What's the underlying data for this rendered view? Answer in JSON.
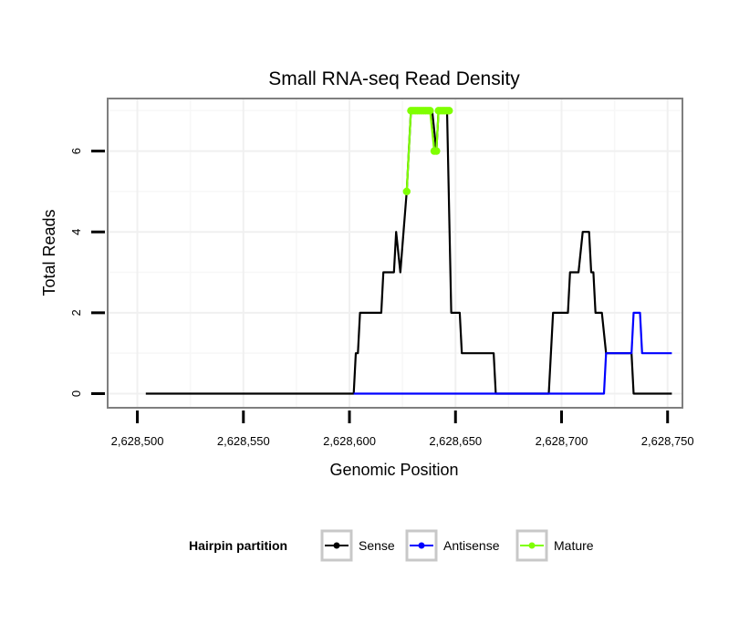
{
  "chart_data": {
    "type": "line",
    "title": "Small RNA-seq Read Density",
    "xlabel": "Genomic Position",
    "ylabel": "Total Reads",
    "xlim": [
      2628486,
      2628757
    ],
    "ylim": [
      -0.35,
      7.3
    ],
    "xticks": [
      {
        "value": 2628500,
        "label": "2,628,500"
      },
      {
        "value": 2628550,
        "label": "2,628,550"
      },
      {
        "value": 2628600,
        "label": "2,628,600"
      },
      {
        "value": 2628650,
        "label": "2,628,650"
      },
      {
        "value": 2628700,
        "label": "2,628,700"
      },
      {
        "value": 2628750,
        "label": "2,628,750"
      }
    ],
    "yticks": [
      {
        "value": 0,
        "label": "0"
      },
      {
        "value": 2,
        "label": "2"
      },
      {
        "value": 4,
        "label": "4"
      },
      {
        "value": 6,
        "label": "6"
      }
    ],
    "legend": {
      "title": "Hairpin partition",
      "position": "bottom",
      "entries": [
        {
          "name": "Sense",
          "color": "#000000"
        },
        {
          "name": "Antisense",
          "color": "#0000ff"
        },
        {
          "name": "Mature",
          "color": "#7fff00"
        }
      ]
    },
    "series": [
      {
        "name": "Sense",
        "color": "#000000",
        "x": [
          2628504,
          2628602,
          2628603,
          2628604,
          2628605,
          2628615,
          2628616,
          2628619,
          2628620,
          2628621,
          2628622,
          2628624,
          2628627,
          2628629,
          2628637,
          2628639,
          2628641,
          2628642,
          2628646,
          2628648,
          2628652,
          2628653,
          2628668,
          2628669,
          2628694,
          2628696,
          2628703,
          2628704,
          2628706,
          2628707,
          2628708,
          2628710,
          2628713,
          2628714,
          2628715,
          2628716,
          2628719,
          2628721,
          2628722,
          2628733,
          2628734,
          2628752
        ],
        "y": [
          0,
          0,
          1,
          1,
          2,
          2,
          3,
          3,
          3,
          3,
          4,
          3,
          5,
          7,
          7,
          7,
          6,
          7,
          7,
          2,
          2,
          1,
          1,
          0,
          0,
          2,
          2,
          3,
          3,
          3,
          3,
          4,
          4,
          3,
          3,
          2,
          2,
          1,
          1,
          1,
          0,
          0
        ]
      },
      {
        "name": "Antisense",
        "color": "#0000ff",
        "x": [
          2628602,
          2628720,
          2628721,
          2628733,
          2628734,
          2628737,
          2628738,
          2628752
        ],
        "y": [
          0,
          0,
          1,
          1,
          2,
          2,
          1,
          1
        ]
      },
      {
        "name": "Mature",
        "color": "#7fff00",
        "x": [
          2628627,
          2628629,
          2628630,
          2628631,
          2628632,
          2628633,
          2628634,
          2628635,
          2628636,
          2628637,
          2628638,
          2628640,
          2628641,
          2628642,
          2628643,
          2628644,
          2628645,
          2628646,
          2628647
        ],
        "y": [
          5,
          7,
          7,
          7,
          7,
          7,
          7,
          7,
          7,
          7,
          7,
          6,
          6,
          7,
          7,
          7,
          7,
          7,
          7
        ]
      }
    ]
  }
}
